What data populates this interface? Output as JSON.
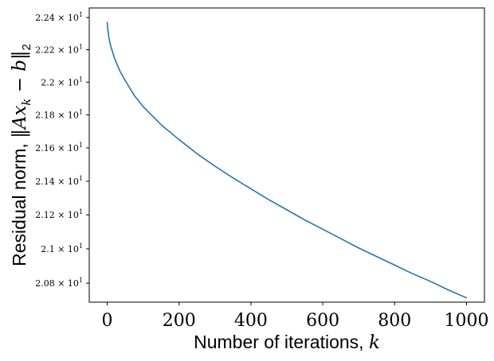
{
  "chart_data": {
    "type": "line",
    "xlabel": {
      "text": "Number of iterations, ",
      "math": "k"
    },
    "ylabel": {
      "text": "Residual norm, ",
      "math": "‖Ax",
      "sub": "k",
      "math2": " − b‖",
      "sub2": "2"
    },
    "x_ticks": [
      {
        "value": 0,
        "label": "0"
      },
      {
        "value": 200,
        "label": "200"
      },
      {
        "value": 400,
        "label": "400"
      },
      {
        "value": 600,
        "label": "600"
      },
      {
        "value": 800,
        "label": "800"
      },
      {
        "value": 1000,
        "label": "1000"
      }
    ],
    "y_ticks": [
      {
        "value": 20.8,
        "mantissa": "2.08",
        "exp": "1"
      },
      {
        "value": 21.0,
        "mantissa": "2.1",
        "exp": "1"
      },
      {
        "value": 21.2,
        "mantissa": "2.12",
        "exp": "1"
      },
      {
        "value": 21.4,
        "mantissa": "2.14",
        "exp": "1"
      },
      {
        "value": 21.6,
        "mantissa": "2.16",
        "exp": "1"
      },
      {
        "value": 21.8,
        "mantissa": "2.18",
        "exp": "1"
      },
      {
        "value": 22.0,
        "mantissa": "2.2",
        "exp": "1"
      },
      {
        "value": 22.2,
        "mantissa": "2.22",
        "exp": "1"
      },
      {
        "value": 22.4,
        "mantissa": "2.24",
        "exp": "1"
      }
    ],
    "xlim": [
      -50,
      1050
    ],
    "ylim": [
      20.69,
      22.46
    ],
    "y_scale": "log",
    "grid": false,
    "legend": "none",
    "series": [
      {
        "color": "#1f77b4",
        "x": [
          0,
          2,
          5,
          10,
          20,
          35,
          50,
          75,
          100,
          150,
          200,
          250,
          300,
          350,
          400,
          450,
          500,
          550,
          600,
          650,
          700,
          750,
          800,
          850,
          900,
          950,
          1000
        ],
        "y": [
          22.37,
          22.32,
          22.27,
          22.22,
          22.15,
          22.07,
          22.01,
          21.92,
          21.85,
          21.74,
          21.65,
          21.565,
          21.49,
          21.42,
          21.355,
          21.29,
          21.23,
          21.17,
          21.115,
          21.06,
          21.005,
          20.955,
          20.905,
          20.855,
          20.81,
          20.76,
          20.715
        ]
      }
    ]
  }
}
